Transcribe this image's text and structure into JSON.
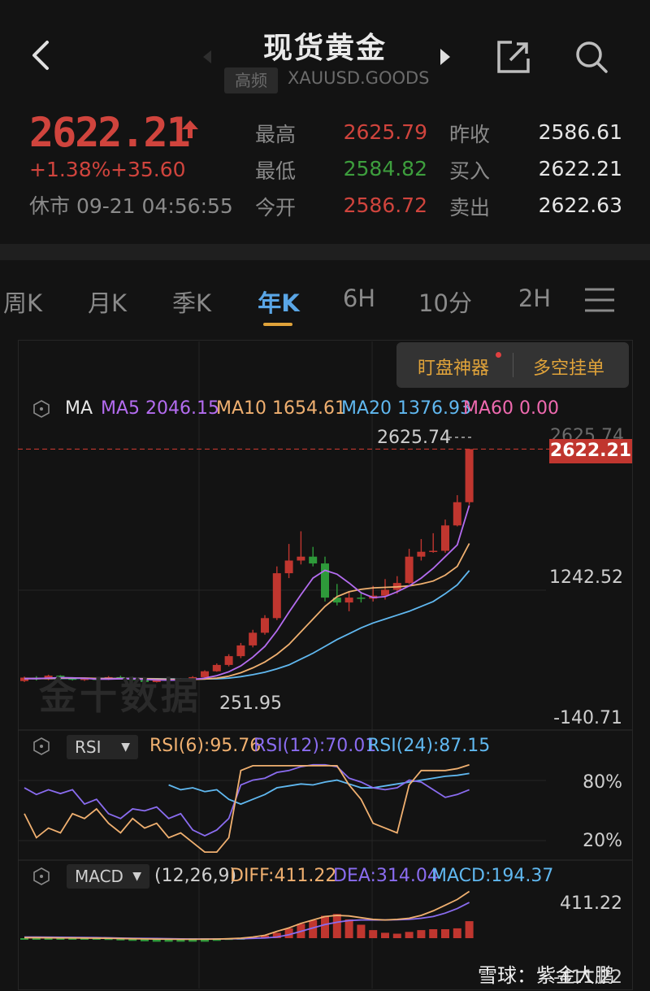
{
  "header": {
    "title": "现货黄金",
    "badge": "高频",
    "symbol": "XAUUSD.GOODS"
  },
  "quote": {
    "price": "2622.21",
    "change_pct": "+1.38%",
    "change_abs": "+35.60",
    "status": "休市 09-21 04:56:55",
    "stats": [
      {
        "label": "最高",
        "value": "2625.79",
        "color": "#d0443d"
      },
      {
        "label": "最低",
        "value": "2584.82",
        "color": "#3d9e3d"
      },
      {
        "label": "今开",
        "value": "2586.72",
        "color": "#d0443d"
      },
      {
        "label": "昨收",
        "value": "2586.61",
        "color": "#e6e6e6"
      },
      {
        "label": "买入",
        "value": "2622.21",
        "color": "#e6e6e6"
      },
      {
        "label": "卖出",
        "value": "2622.63",
        "color": "#e6e6e6"
      }
    ]
  },
  "tabs": [
    {
      "label": "周K",
      "active": false
    },
    {
      "label": "月K",
      "active": false
    },
    {
      "label": "季K",
      "active": false
    },
    {
      "label": "年K",
      "active": true
    },
    {
      "label": "6H",
      "active": false
    },
    {
      "label": "10分",
      "active": false
    },
    {
      "label": "2H",
      "active": false
    }
  ],
  "tools": {
    "monitor": "盯盘神器",
    "orders": "多空挂单"
  },
  "ma_legend": {
    "label": "MA",
    "ma5": "MA5 2046.15",
    "ma10": "MA10 1654.61",
    "ma20": "MA20 1376.93",
    "ma60": "MA60 0.00",
    "colors": {
      "ma5": "#b46cf0",
      "ma10": "#f0b070",
      "ma20": "#60b8f0",
      "ma60": "#f06ab0"
    }
  },
  "price_axis": {
    "top": "2625.74",
    "mid": "1242.52",
    "bottom": "-140.71",
    "current": "2622.21",
    "high_marker": "2625.74",
    "low_marker": "251.95"
  },
  "rsi": {
    "select": "RSI",
    "rsi6": "RSI(6):95.76",
    "rsi12": "RSI(12):70.01",
    "rsi24": "RSI(24):87.15",
    "axis_top": "80%",
    "axis_bottom": "20%"
  },
  "macd": {
    "select": "MACD",
    "params": "(12,26,9)",
    "diff": "DIFF:411.22",
    "dea": "DEA:314.04",
    "macd": "MACD:194.37",
    "axis_top": "411.22",
    "axis_bottom": "-411.22"
  },
  "watermark": "金十数据",
  "footer_watermark": "雪球：紫金大鹏",
  "candles": [
    {
      "o": 245,
      "c": 280,
      "h": 290,
      "l": 235
    },
    {
      "o": 280,
      "c": 262,
      "h": 295,
      "l": 250
    },
    {
      "o": 262,
      "c": 300,
      "h": 310,
      "l": 255
    },
    {
      "o": 300,
      "c": 270,
      "h": 305,
      "l": 262
    },
    {
      "o": 270,
      "c": 258,
      "h": 282,
      "l": 250
    },
    {
      "o": 258,
      "c": 268,
      "h": 276,
      "l": 246
    },
    {
      "o": 268,
      "c": 262,
      "h": 280,
      "l": 255
    },
    {
      "o": 262,
      "c": 285,
      "h": 296,
      "l": 255
    },
    {
      "o": 285,
      "c": 270,
      "h": 300,
      "l": 262
    },
    {
      "o": 270,
      "c": 255,
      "h": 290,
      "l": 248
    },
    {
      "o": 255,
      "c": 235,
      "h": 272,
      "l": 225
    },
    {
      "o": 235,
      "c": 260,
      "h": 268,
      "l": 230
    },
    {
      "o": 260,
      "c": 255,
      "h": 276,
      "l": 245
    },
    {
      "o": 255,
      "c": 262,
      "h": 275,
      "l": 250
    },
    {
      "o": 262,
      "c": 285,
      "h": 295,
      "l": 255
    },
    {
      "o": 285,
      "c": 345,
      "h": 355,
      "l": 280
    },
    {
      "o": 345,
      "c": 410,
      "h": 425,
      "l": 340
    },
    {
      "o": 410,
      "c": 500,
      "h": 520,
      "l": 395
    },
    {
      "o": 500,
      "c": 610,
      "h": 635,
      "l": 480
    },
    {
      "o": 610,
      "c": 740,
      "h": 770,
      "l": 590
    },
    {
      "o": 740,
      "c": 890,
      "h": 920,
      "l": 720
    },
    {
      "o": 890,
      "c": 1350,
      "h": 1420,
      "l": 870
    },
    {
      "o": 1350,
      "c": 1480,
      "h": 1650,
      "l": 1300
    },
    {
      "o": 1480,
      "c": 1520,
      "h": 1780,
      "l": 1440
    },
    {
      "o": 1520,
      "c": 1450,
      "h": 1620,
      "l": 1420
    },
    {
      "o": 1450,
      "c": 1100,
      "h": 1520,
      "l": 1060
    },
    {
      "o": 1100,
      "c": 1050,
      "h": 1240,
      "l": 1020
    },
    {
      "o": 1050,
      "c": 1100,
      "h": 1160,
      "l": 960
    },
    {
      "o": 1100,
      "c": 1090,
      "h": 1160,
      "l": 1050
    },
    {
      "o": 1090,
      "c": 1120,
      "h": 1220,
      "l": 1060
    },
    {
      "o": 1120,
      "c": 1180,
      "h": 1290,
      "l": 1080
    },
    {
      "o": 1180,
      "c": 1250,
      "h": 1320,
      "l": 1140
    },
    {
      "o": 1250,
      "c": 1520,
      "h": 1600,
      "l": 1240
    },
    {
      "o": 1520,
      "c": 1570,
      "h": 1700,
      "l": 1480
    },
    {
      "o": 1570,
      "c": 1580,
      "h": 1760,
      "l": 1560
    },
    {
      "o": 1580,
      "c": 1840,
      "h": 1900,
      "l": 1560
    },
    {
      "o": 1840,
      "c": 2078,
      "h": 2150,
      "l": 1830
    },
    {
      "o": 2078,
      "c": 2622,
      "h": 2625,
      "l": 2053
    }
  ],
  "ma5": [
    270,
    270,
    275,
    280,
    278,
    273,
    265,
    265,
    268,
    270,
    262,
    256,
    254,
    255,
    260,
    275,
    300,
    340,
    400,
    490,
    600,
    760,
    950,
    1130,
    1300,
    1380,
    1340,
    1250,
    1150,
    1100,
    1110,
    1160,
    1220,
    1300,
    1400,
    1520,
    1640,
    2046
  ],
  "ma10": [
    270,
    270,
    272,
    275,
    276,
    276,
    272,
    270,
    270,
    270,
    268,
    265,
    262,
    261,
    262,
    266,
    275,
    295,
    330,
    380,
    440,
    520,
    620,
    750,
    880,
    1010,
    1110,
    1160,
    1185,
    1200,
    1205,
    1210,
    1220,
    1240,
    1270,
    1330,
    1420,
    1655
  ],
  "ma20": [
    270,
    270,
    271,
    272,
    273,
    273,
    272,
    271,
    270,
    270,
    269,
    268,
    266,
    265,
    265,
    266,
    268,
    275,
    290,
    310,
    335,
    370,
    410,
    470,
    530,
    600,
    670,
    730,
    790,
    840,
    880,
    920,
    960,
    1010,
    1060,
    1140,
    1230,
    1377
  ],
  "rsi6_series": [
    45,
    20,
    30,
    25,
    45,
    40,
    50,
    35,
    25,
    40,
    30,
    35,
    20,
    25,
    15,
    5,
    5,
    20,
    90,
    95,
    95,
    95,
    95,
    95,
    95,
    95,
    95,
    75,
    60,
    35,
    30,
    25,
    75,
    90,
    90,
    90,
    92,
    96
  ],
  "rsi12_series": [
    72,
    65,
    70,
    66,
    70,
    55,
    60,
    45,
    40,
    50,
    48,
    52,
    40,
    45,
    28,
    22,
    28,
    40,
    75,
    80,
    82,
    88,
    90,
    94,
    96,
    96,
    94,
    82,
    78,
    72,
    70,
    72,
    80,
    78,
    70,
    62,
    65,
    70
  ],
  "rsi24_series": [
    null,
    null,
    null,
    null,
    null,
    null,
    null,
    null,
    null,
    null,
    null,
    null,
    75,
    70,
    72,
    68,
    70,
    60,
    55,
    60,
    65,
    72,
    74,
    76,
    75,
    78,
    80,
    76,
    72,
    72,
    74,
    76,
    78,
    80,
    82,
    84,
    85,
    87
  ],
  "macd_hist": [
    -2,
    -2,
    -2,
    -2,
    -3,
    -3,
    -3,
    -4,
    -5,
    -6,
    -7,
    -8,
    -8,
    -8,
    -8,
    -8,
    -6,
    -4,
    -2,
    2,
    6,
    12,
    22,
    32,
    40,
    50,
    54,
    42,
    30,
    18,
    12,
    10,
    14,
    18,
    20,
    20,
    22,
    38
  ],
  "diff_series": [
    4,
    4,
    3,
    2,
    2,
    1,
    0,
    -1,
    -3,
    -5,
    -6,
    -8,
    -9,
    -10,
    -10,
    -9,
    -8,
    -5,
    0,
    10,
    25,
    60,
    90,
    130,
    160,
    190,
    200,
    195,
    180,
    165,
    160,
    165,
    175,
    200,
    240,
    290,
    340,
    411
  ],
  "dea_series": [
    10,
    10,
    9,
    8,
    7,
    6,
    5,
    3,
    1,
    -1,
    -2,
    -3,
    -5,
    -6,
    -7,
    -7,
    -7,
    -6,
    -5,
    -2,
    2,
    10,
    30,
    60,
    90,
    120,
    140,
    155,
    160,
    160,
    160,
    162,
    165,
    175,
    190,
    220,
    260,
    314
  ]
}
